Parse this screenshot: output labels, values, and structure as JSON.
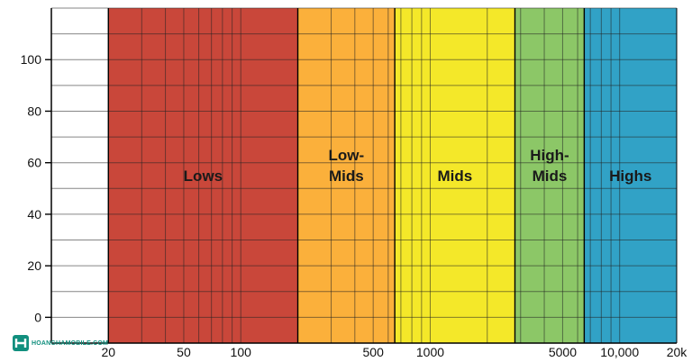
{
  "chart_data": {
    "type": "bar",
    "title": "",
    "xlabel": "",
    "ylabel": "",
    "x_scale": "log",
    "xlim": [
      10,
      20000
    ],
    "ylim": [
      -10,
      120
    ],
    "grid": true,
    "y_ticks": [
      0,
      20,
      40,
      60,
      80,
      100
    ],
    "x_ticks": [
      {
        "value": 20,
        "label": "20"
      },
      {
        "value": 50,
        "label": "50"
      },
      {
        "value": 100,
        "label": "100"
      },
      {
        "value": 500,
        "label": "500"
      },
      {
        "value": 1000,
        "label": "1000"
      },
      {
        "value": 5000,
        "label": "5000"
      },
      {
        "value": 10000,
        "label": "10,000"
      },
      {
        "value": 20000,
        "label": "20k"
      }
    ],
    "bands": [
      {
        "label": [
          "Lows"
        ],
        "from": 20,
        "to": 200,
        "color": "#c9473a"
      },
      {
        "label": [
          "Low-",
          "Mids"
        ],
        "from": 200,
        "to": 650,
        "color": "#fbb03b"
      },
      {
        "label": [
          "Mids"
        ],
        "from": 650,
        "to": 2800,
        "color": "#f4e829"
      },
      {
        "label": [
          "High-",
          "Mids"
        ],
        "from": 2800,
        "to": 6500,
        "color": "#8cc767"
      },
      {
        "label": [
          "Highs"
        ],
        "from": 6500,
        "to": 20000,
        "color": "#31a2c6"
      }
    ]
  },
  "watermark": {
    "text": "HOANGHAMOBILE.COM",
    "icon": "logo-mark-icon",
    "color": "#118f7e"
  }
}
